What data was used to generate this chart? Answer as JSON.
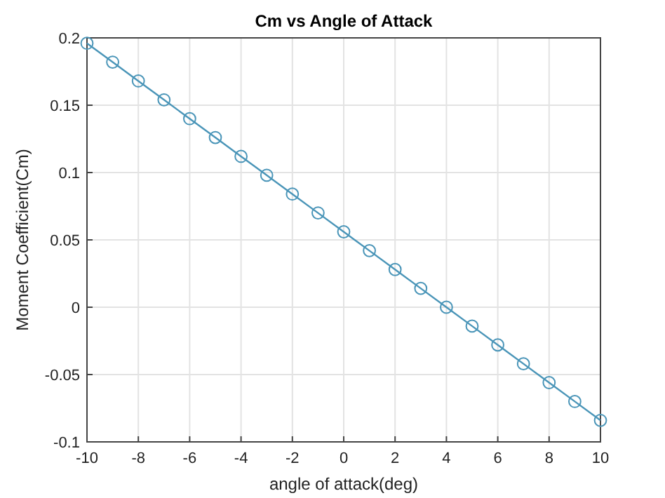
{
  "chart_data": {
    "type": "line",
    "title": "Cm vs Angle of Attack",
    "xlabel": "angle of attack(deg)",
    "ylabel": "Moment Coefficient(Cm)",
    "x": [
      -10,
      -9,
      -8,
      -7,
      -6,
      -5,
      -4,
      -3,
      -2,
      -1,
      0,
      1,
      2,
      3,
      4,
      5,
      6,
      7,
      8,
      9,
      10
    ],
    "series": [
      {
        "color": "#4a95b8",
        "values": [
          0.196,
          0.182,
          0.168,
          0.154,
          0.14,
          0.126,
          0.112,
          0.098,
          0.084,
          0.07,
          0.056,
          0.042,
          0.028,
          0.014,
          0,
          -0.014,
          -0.028,
          -0.042,
          -0.056,
          -0.07,
          -0.084
        ]
      }
    ],
    "xlim": [
      -10,
      10
    ],
    "xticks": [
      -10,
      -8,
      -6,
      -4,
      -2,
      0,
      2,
      4,
      6,
      8,
      10
    ],
    "ylim": [
      -0.1,
      0.2
    ],
    "yticks": [
      -0.1,
      -0.05,
      0,
      0.05,
      0.1,
      0.15,
      0.2
    ],
    "grid": true,
    "marker": "circle",
    "line_style": "solid"
  }
}
